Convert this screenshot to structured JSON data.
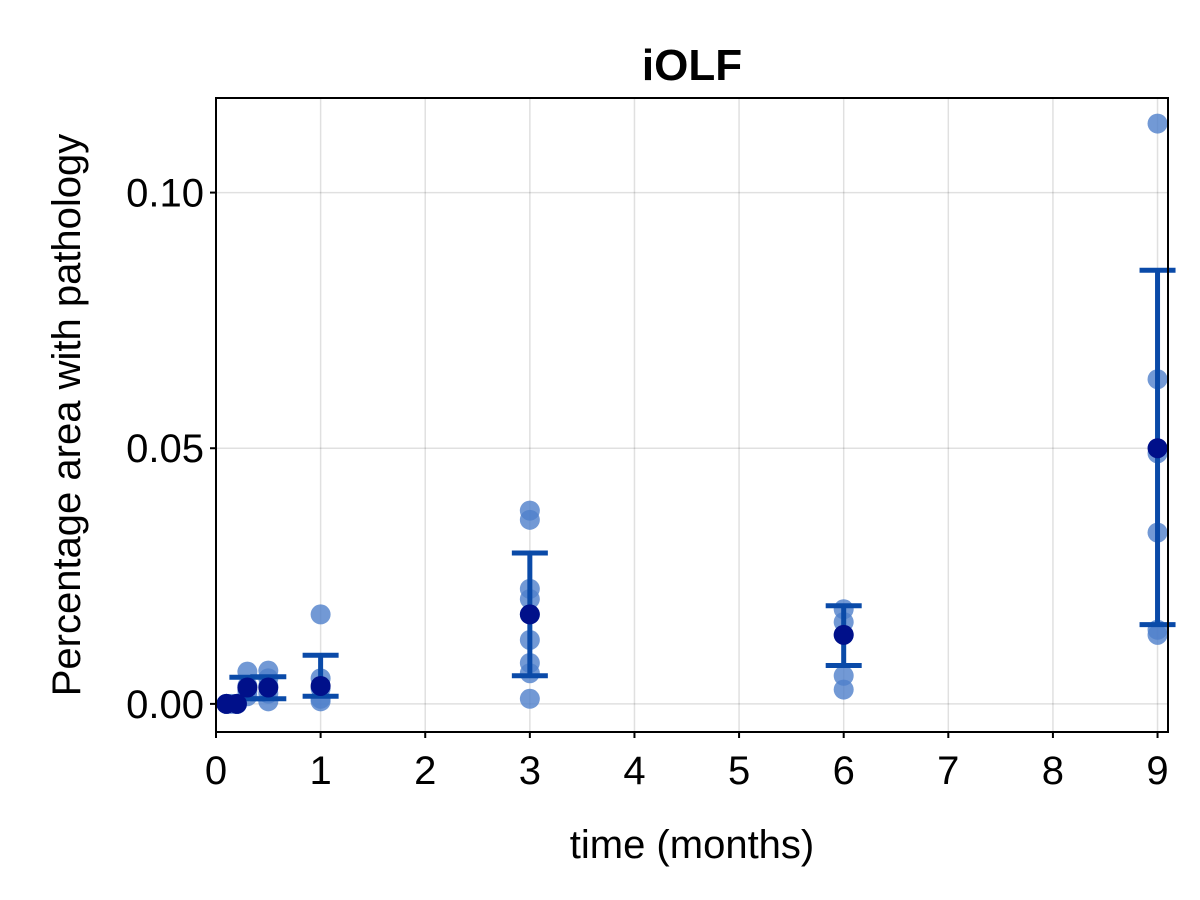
{
  "chart_data": {
    "type": "scatter",
    "title": "iOLF",
    "xlabel": "time (months)",
    "ylabel": "Percentage area with pathology",
    "xlim": [
      0,
      9.1
    ],
    "ylim": [
      -0.0055,
      0.1185
    ],
    "xticks": [
      0,
      1,
      2,
      3,
      4,
      5,
      6,
      7,
      8,
      9
    ],
    "xtick_labels": [
      "0",
      "1",
      "2",
      "3",
      "4",
      "5",
      "6",
      "7",
      "8",
      "9"
    ],
    "yticks": [
      0.0,
      0.05,
      0.1
    ],
    "ytick_labels": [
      "0.00",
      "0.05",
      "0.10"
    ],
    "grid": true,
    "colors": {
      "points": "#4f7fcb",
      "mean": "#00108a",
      "errorbar": "#0a4aa8"
    },
    "points": [
      {
        "x": 0.1,
        "y": 0.0
      },
      {
        "x": 0.1,
        "y": 0.0
      },
      {
        "x": 0.1,
        "y": 0.0
      },
      {
        "x": 0.15,
        "y": 0.0
      },
      {
        "x": 0.2,
        "y": 0.0
      },
      {
        "x": 0.2,
        "y": 0.0
      },
      {
        "x": 0.2,
        "y": 0.0
      },
      {
        "x": 0.3,
        "y": 0.0063
      },
      {
        "x": 0.3,
        "y": 0.0035
      },
      {
        "x": 0.3,
        "y": 0.0025
      },
      {
        "x": 0.3,
        "y": 0.0015
      },
      {
        "x": 0.5,
        "y": 0.0065
      },
      {
        "x": 0.5,
        "y": 0.005
      },
      {
        "x": 0.5,
        "y": 0.0035
      },
      {
        "x": 0.5,
        "y": 0.002
      },
      {
        "x": 0.5,
        "y": 0.0005
      },
      {
        "x": 1,
        "y": 0.0175
      },
      {
        "x": 1,
        "y": 0.005
      },
      {
        "x": 1,
        "y": 0.003
      },
      {
        "x": 1,
        "y": 0.001
      },
      {
        "x": 1,
        "y": 0.0005
      },
      {
        "x": 3,
        "y": 0.0378
      },
      {
        "x": 3,
        "y": 0.036
      },
      {
        "x": 3,
        "y": 0.0225
      },
      {
        "x": 3,
        "y": 0.0205
      },
      {
        "x": 3,
        "y": 0.0175
      },
      {
        "x": 3,
        "y": 0.0125
      },
      {
        "x": 3,
        "y": 0.008
      },
      {
        "x": 3,
        "y": 0.006
      },
      {
        "x": 3,
        "y": 0.001
      },
      {
        "x": 6,
        "y": 0.0185
      },
      {
        "x": 6,
        "y": 0.016
      },
      {
        "x": 6,
        "y": 0.0135
      },
      {
        "x": 6,
        "y": 0.0055
      },
      {
        "x": 6,
        "y": 0.0028
      },
      {
        "x": 9,
        "y": 0.1135
      },
      {
        "x": 9,
        "y": 0.0635
      },
      {
        "x": 9,
        "y": 0.049
      },
      {
        "x": 9,
        "y": 0.0335
      },
      {
        "x": 9,
        "y": 0.0145
      },
      {
        "x": 9,
        "y": 0.0135
      }
    ],
    "series": [
      {
        "x": 0.1,
        "mean": 0.0,
        "lower": 0.0,
        "upper": 0.0
      },
      {
        "x": 0.2,
        "mean": 0.0,
        "lower": 0.0,
        "upper": 0.0
      },
      {
        "x": 0.3,
        "mean": 0.0032,
        "lower": 0.001,
        "upper": 0.0052
      },
      {
        "x": 0.5,
        "mean": 0.0032,
        "lower": 0.001,
        "upper": 0.0053
      },
      {
        "x": 1,
        "mean": 0.0035,
        "lower": 0.0015,
        "upper": 0.0095
      },
      {
        "x": 3,
        "mean": 0.0175,
        "lower": 0.0055,
        "upper": 0.0295
      },
      {
        "x": 6,
        "mean": 0.0135,
        "lower": 0.0075,
        "upper": 0.0192
      },
      {
        "x": 9,
        "mean": 0.05,
        "lower": 0.0155,
        "upper": 0.0848
      }
    ]
  }
}
